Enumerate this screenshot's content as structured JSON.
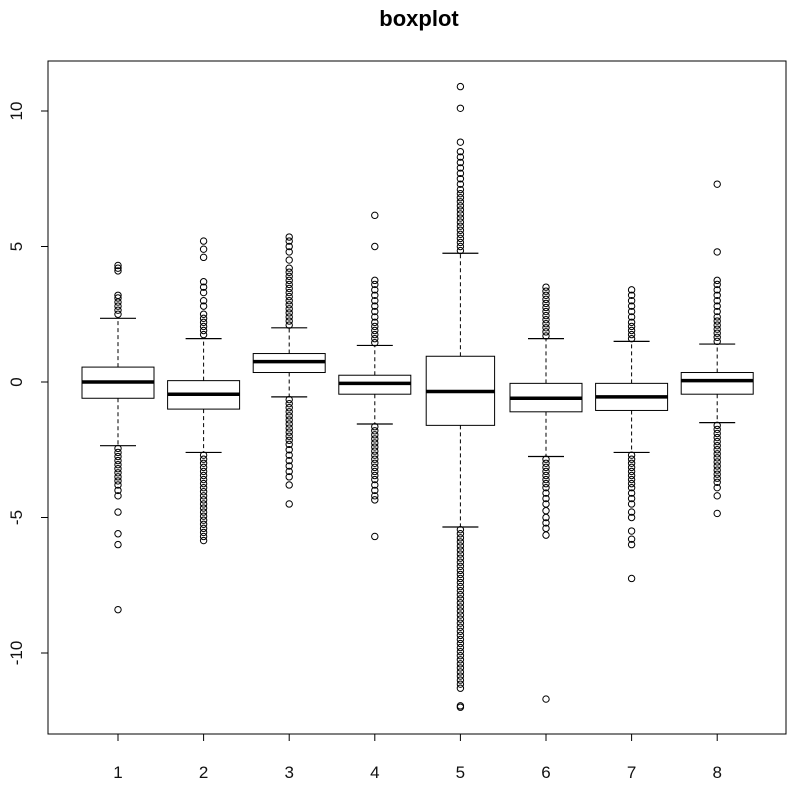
{
  "chart_data": {
    "type": "boxplot",
    "title": "boxplot",
    "xlabel": "",
    "ylabel": "",
    "categories": [
      "1",
      "2",
      "3",
      "4",
      "5",
      "6",
      "7",
      "8"
    ],
    "ylim": [
      -12.5,
      11.5
    ],
    "y_ticks": [
      -10,
      -5,
      0,
      5,
      10
    ],
    "y_tick_labels": [
      "-10",
      "-5",
      "0",
      "5",
      "10"
    ],
    "grid": false,
    "boxes": [
      {
        "name": "1",
        "q1": -0.6,
        "median": 0.0,
        "q3": 0.55,
        "whisker_low": -2.35,
        "whisker_high": 2.35,
        "outliers_high": [
          2.5,
          2.65,
          2.8,
          2.95,
          3.1,
          3.2,
          4.1,
          4.2,
          4.3
        ],
        "outliers_low": [
          -2.45,
          -2.6,
          -2.75,
          -2.9,
          -3.05,
          -3.2,
          -3.35,
          -3.5,
          -3.65,
          -3.8,
          -4.0,
          -4.2,
          -4.8,
          -5.6,
          -6.0,
          -8.4
        ]
      },
      {
        "name": "2",
        "q1": -1.0,
        "median": -0.45,
        "q3": 0.05,
        "whisker_low": -2.6,
        "whisker_high": 1.6,
        "outliers_high": [
          1.75,
          1.9,
          2.05,
          2.2,
          2.35,
          2.5,
          2.8,
          3.0,
          3.3,
          3.5,
          3.7,
          4.6,
          4.9,
          5.2
        ],
        "outliers_low": [
          -2.7,
          -2.85,
          -3.0,
          -3.15,
          -3.3,
          -3.45,
          -3.6,
          -3.75,
          -3.9,
          -4.05,
          -4.2,
          -4.35,
          -4.5,
          -4.65,
          -4.8,
          -4.95,
          -5.1,
          -5.25,
          -5.4,
          -5.55,
          -5.7,
          -5.85
        ]
      },
      {
        "name": "3",
        "q1": 0.35,
        "median": 0.75,
        "q3": 1.05,
        "whisker_low": -0.55,
        "whisker_high": 2.0,
        "outliers_high": [
          2.1,
          2.25,
          2.4,
          2.55,
          2.7,
          2.85,
          3.0,
          3.15,
          3.3,
          3.45,
          3.6,
          3.75,
          3.9,
          4.05,
          4.2,
          4.5,
          4.8,
          5.0,
          5.2,
          5.35
        ],
        "outliers_low": [
          -0.65,
          -0.8,
          -0.95,
          -1.1,
          -1.25,
          -1.4,
          -1.55,
          -1.7,
          -1.85,
          -2.0,
          -2.15,
          -2.3,
          -2.5,
          -2.7,
          -2.9,
          -3.1,
          -3.3,
          -3.5,
          -3.8,
          -4.5
        ]
      },
      {
        "name": "4",
        "q1": -0.45,
        "median": -0.05,
        "q3": 0.25,
        "whisker_low": -1.55,
        "whisker_high": 1.35,
        "outliers_high": [
          1.45,
          1.6,
          1.75,
          1.9,
          2.05,
          2.2,
          2.4,
          2.6,
          2.8,
          3.0,
          3.2,
          3.4,
          3.6,
          3.75,
          5.0,
          6.15
        ],
        "outliers_low": [
          -1.65,
          -1.8,
          -1.95,
          -2.1,
          -2.25,
          -2.4,
          -2.55,
          -2.7,
          -2.85,
          -3.0,
          -3.15,
          -3.3,
          -3.45,
          -3.6,
          -3.8,
          -4.0,
          -4.2,
          -4.35,
          -5.7
        ]
      },
      {
        "name": "5",
        "q1": -1.6,
        "median": -0.35,
        "q3": 0.95,
        "whisker_low": -5.35,
        "whisker_high": 4.75,
        "outliers_high": [
          4.85,
          5.0,
          5.15,
          5.3,
          5.45,
          5.6,
          5.75,
          5.9,
          6.05,
          6.2,
          6.35,
          6.5,
          6.65,
          6.8,
          6.95,
          7.1,
          7.3,
          7.5,
          7.7,
          7.9,
          8.1,
          8.3,
          8.5,
          8.85,
          10.1,
          10.9
        ],
        "outliers_low": [
          -5.45,
          -5.6,
          -5.75,
          -5.9,
          -6.05,
          -6.2,
          -6.35,
          -6.5,
          -6.65,
          -6.8,
          -6.95,
          -7.1,
          -7.25,
          -7.4,
          -7.55,
          -7.7,
          -7.85,
          -8.0,
          -8.15,
          -8.3,
          -8.45,
          -8.6,
          -8.75,
          -8.9,
          -9.05,
          -9.2,
          -9.35,
          -9.5,
          -9.65,
          -9.8,
          -9.95,
          -10.1,
          -10.25,
          -10.4,
          -10.55,
          -10.7,
          -10.85,
          -11.0,
          -11.15,
          -11.3,
          -11.95,
          -12.0
        ]
      },
      {
        "name": "6",
        "q1": -1.1,
        "median": -0.6,
        "q3": -0.05,
        "whisker_low": -2.75,
        "whisker_high": 1.6,
        "outliers_high": [
          1.7,
          1.85,
          2.0,
          2.15,
          2.3,
          2.45,
          2.6,
          2.75,
          2.9,
          3.05,
          3.2,
          3.35,
          3.5
        ],
        "outliers_low": [
          -2.85,
          -3.0,
          -3.15,
          -3.3,
          -3.45,
          -3.6,
          -3.75,
          -3.9,
          -4.1,
          -4.3,
          -4.5,
          -4.75,
          -5.0,
          -5.2,
          -5.4,
          -5.65,
          -11.7
        ]
      },
      {
        "name": "7",
        "q1": -1.05,
        "median": -0.55,
        "q3": -0.05,
        "whisker_low": -2.6,
        "whisker_high": 1.5,
        "outliers_high": [
          1.6,
          1.75,
          1.9,
          2.05,
          2.2,
          2.4,
          2.6,
          2.8,
          3.0,
          3.2,
          3.4
        ],
        "outliers_low": [
          -2.7,
          -2.85,
          -3.0,
          -3.15,
          -3.3,
          -3.45,
          -3.6,
          -3.75,
          -3.9,
          -4.1,
          -4.3,
          -4.5,
          -4.8,
          -5.0,
          -5.5,
          -5.8,
          -6.0,
          -7.25
        ]
      },
      {
        "name": "8",
        "q1": -0.45,
        "median": 0.05,
        "q3": 0.35,
        "whisker_low": -1.5,
        "whisker_high": 1.4,
        "outliers_high": [
          1.5,
          1.65,
          1.8,
          1.95,
          2.1,
          2.25,
          2.4,
          2.6,
          2.8,
          3.0,
          3.2,
          3.4,
          3.6,
          3.75,
          4.8,
          7.3
        ],
        "outliers_low": [
          -1.6,
          -1.75,
          -1.9,
          -2.05,
          -2.2,
          -2.35,
          -2.5,
          -2.65,
          -2.8,
          -2.95,
          -3.1,
          -3.25,
          -3.4,
          -3.55,
          -3.7,
          -3.9,
          -4.2,
          -4.85
        ]
      }
    ]
  }
}
